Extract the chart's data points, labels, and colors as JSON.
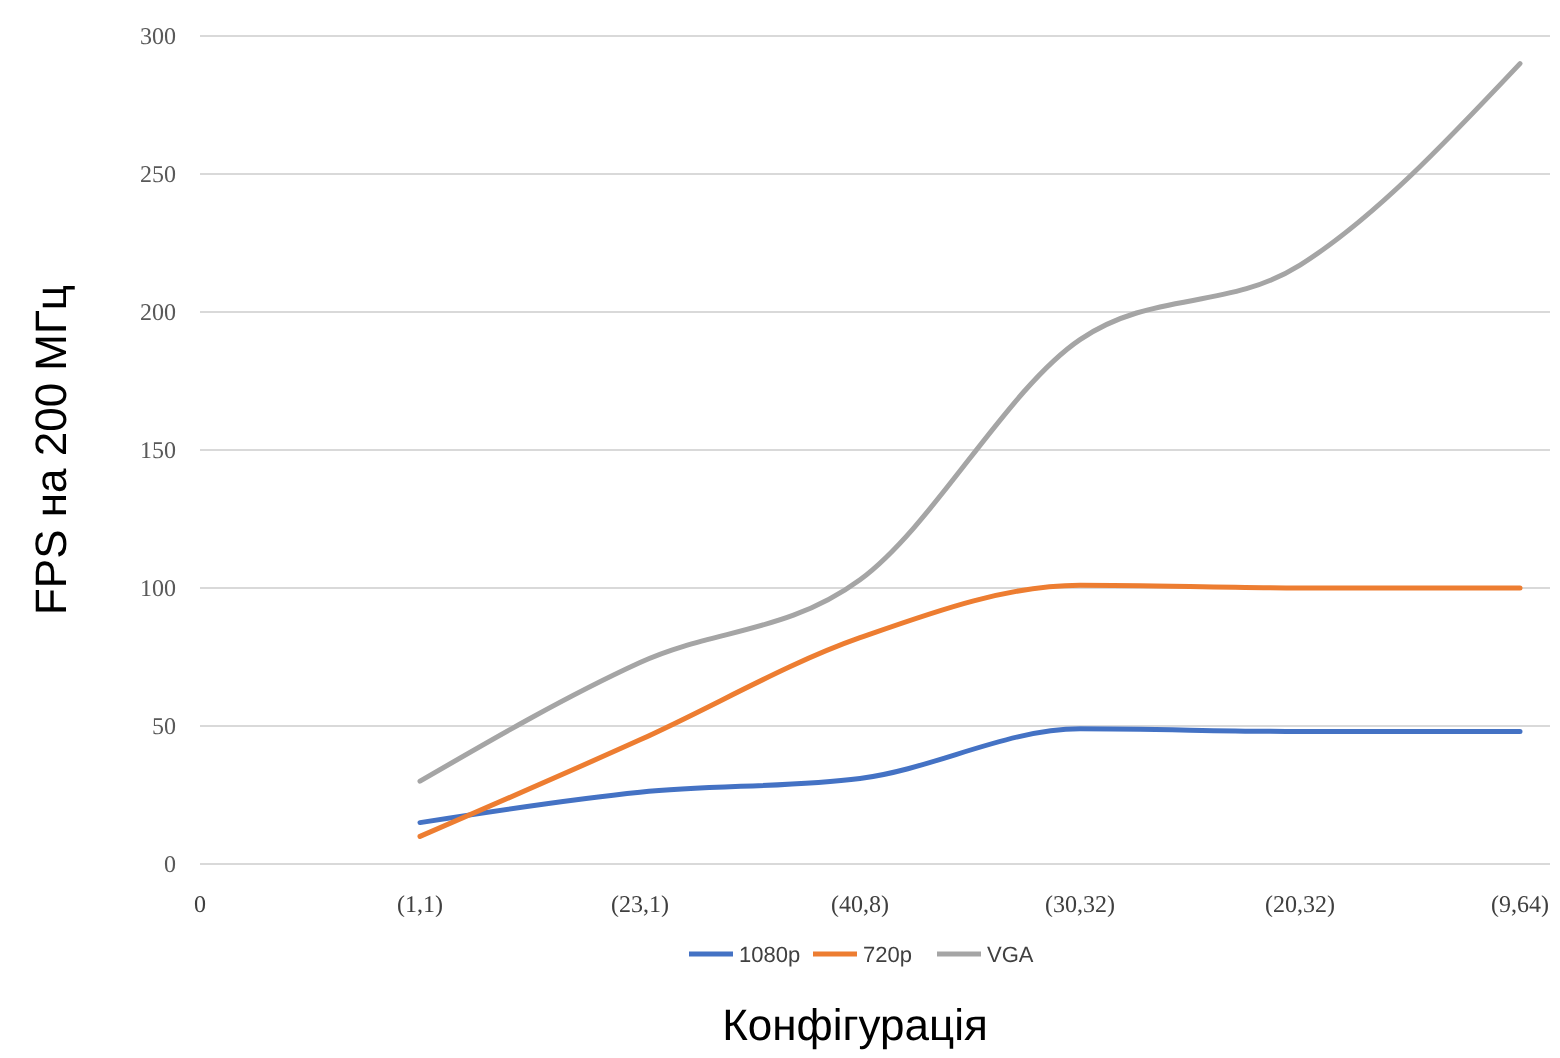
{
  "chart_data": {
    "type": "line",
    "xlabel": "Конфігурація",
    "ylabel": "FPS на 200 МГц",
    "categories": [
      "0",
      "(1,1)",
      "(23,1)",
      "(40,8)",
      "(30,32)",
      "(20,32)",
      "(9,64)"
    ],
    "series": [
      {
        "name": "1080p",
        "color": "#4472c4",
        "values": [
          null,
          15,
          26,
          31,
          49,
          48,
          48
        ]
      },
      {
        "name": "720p",
        "color": "#ed7d31",
        "values": [
          null,
          10,
          45,
          82,
          101,
          100,
          100
        ]
      },
      {
        "name": "VGA",
        "color": "#a5a5a5",
        "values": [
          null,
          30,
          73,
          103,
          190,
          217,
          290
        ]
      }
    ],
    "ylim": [
      0,
      300
    ],
    "yticks": [
      0,
      50,
      100,
      150,
      200,
      250,
      300
    ],
    "grid": "y",
    "legend": "bottom",
    "marker": "none",
    "line_style": "solid"
  }
}
